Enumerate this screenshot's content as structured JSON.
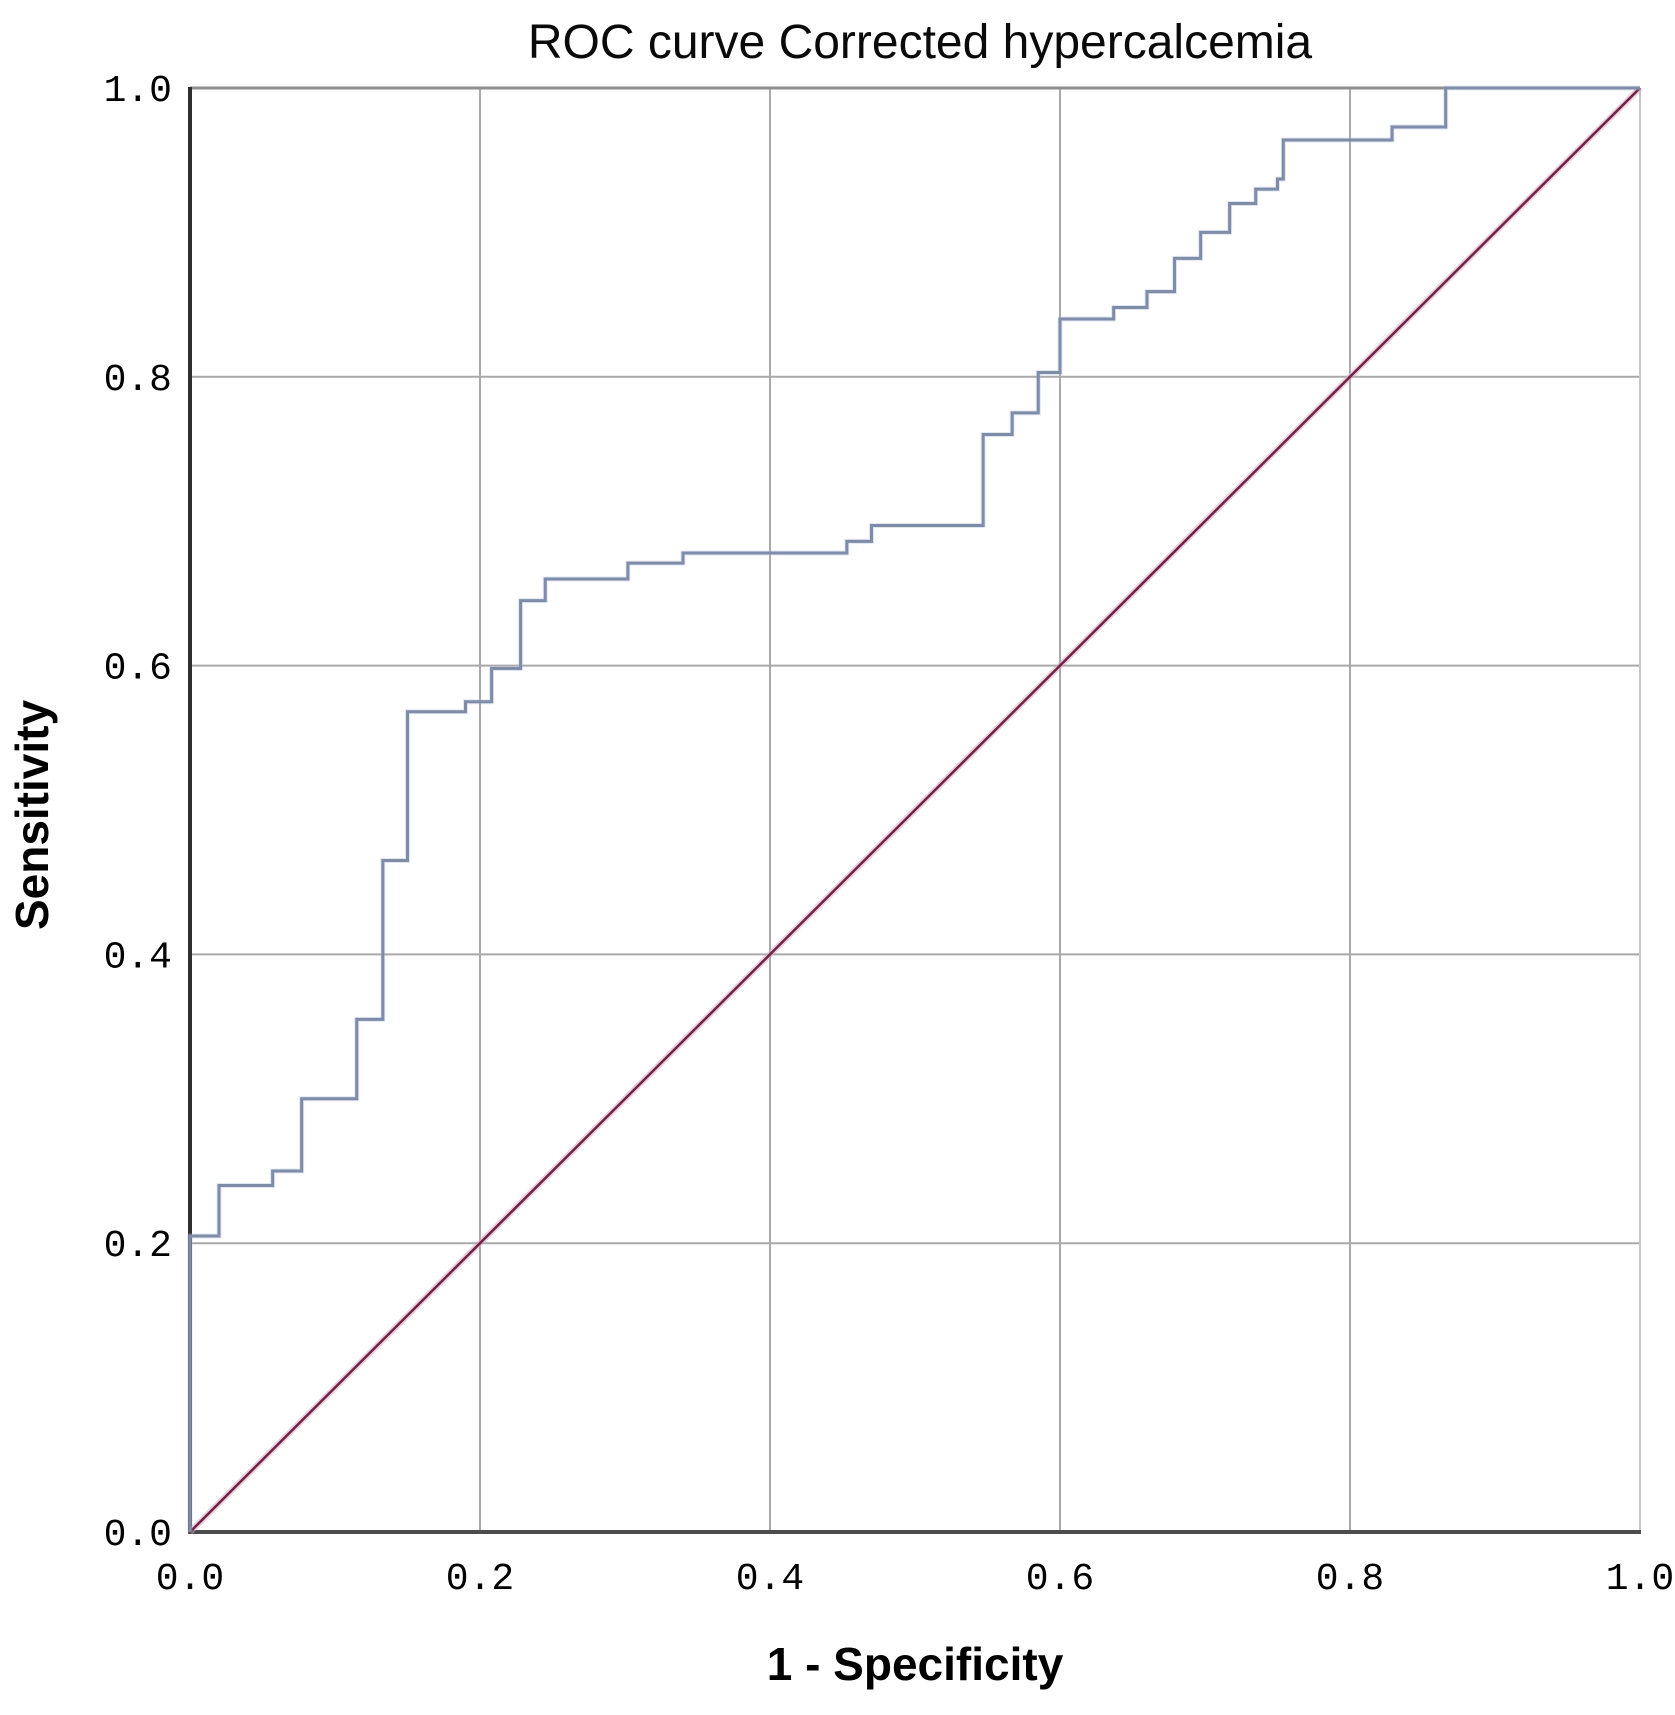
{
  "figure": {
    "title": "ROC curve Corrected hypercalcemia",
    "x_axis": {
      "label": "1 - Specificity",
      "ticks": [
        "0.0",
        "0.2",
        "0.4",
        "0.6",
        "0.8",
        "1.0"
      ]
    },
    "y_axis": {
      "label": "Sensitivity",
      "ticks": [
        "0.0",
        "0.2",
        "0.4",
        "0.6",
        "0.8",
        "1.0"
      ]
    }
  },
  "colors": {
    "background": "#ffffff",
    "gridline": "#a9a9a9",
    "axis_left": "#2f2f2f",
    "axis_bottom": "#4d4d4d",
    "border_top": "#8f8f8f",
    "border_right": "#c6c6c6",
    "curve": "#7e8ca8",
    "curve_highlight": "#a9b6dc",
    "diagonal": "#6f2345",
    "diagonal_halo": "#d9a8c0",
    "text": "#000000"
  },
  "chart_data": {
    "type": "line",
    "title": "ROC curve Corrected hypercalcemia",
    "xlabel": "1 - Specificity",
    "ylabel": "Sensitivity",
    "xlim": [
      0,
      1
    ],
    "ylim": [
      0,
      1
    ],
    "x_ticks": [
      0.0,
      0.2,
      0.4,
      0.6,
      0.8,
      1.0
    ],
    "y_ticks": [
      0.0,
      0.2,
      0.4,
      0.6,
      0.8,
      1.0
    ],
    "grid": true,
    "legend": "none",
    "series": [
      {
        "name": "ROC curve",
        "style": "step",
        "color": "#7e8ca8",
        "points": [
          [
            0.0,
            0.0
          ],
          [
            0.0,
            0.205
          ],
          [
            0.02,
            0.205
          ],
          [
            0.02,
            0.24
          ],
          [
            0.057,
            0.24
          ],
          [
            0.057,
            0.25
          ],
          [
            0.077,
            0.25
          ],
          [
            0.077,
            0.3
          ],
          [
            0.115,
            0.3
          ],
          [
            0.115,
            0.355
          ],
          [
            0.133,
            0.355
          ],
          [
            0.133,
            0.465
          ],
          [
            0.15,
            0.465
          ],
          [
            0.15,
            0.568
          ],
          [
            0.19,
            0.568
          ],
          [
            0.19,
            0.575
          ],
          [
            0.208,
            0.575
          ],
          [
            0.208,
            0.598
          ],
          [
            0.228,
            0.598
          ],
          [
            0.228,
            0.645
          ],
          [
            0.245,
            0.645
          ],
          [
            0.245,
            0.66
          ],
          [
            0.302,
            0.66
          ],
          [
            0.302,
            0.671
          ],
          [
            0.34,
            0.671
          ],
          [
            0.34,
            0.678
          ],
          [
            0.453,
            0.678
          ],
          [
            0.453,
            0.686
          ],
          [
            0.47,
            0.686
          ],
          [
            0.47,
            0.697
          ],
          [
            0.547,
            0.697
          ],
          [
            0.547,
            0.76
          ],
          [
            0.567,
            0.76
          ],
          [
            0.567,
            0.775
          ],
          [
            0.585,
            0.775
          ],
          [
            0.585,
            0.803
          ],
          [
            0.6,
            0.803
          ],
          [
            0.6,
            0.84
          ],
          [
            0.637,
            0.84
          ],
          [
            0.637,
            0.848
          ],
          [
            0.66,
            0.848
          ],
          [
            0.66,
            0.859
          ],
          [
            0.679,
            0.859
          ],
          [
            0.679,
            0.882
          ],
          [
            0.697,
            0.882
          ],
          [
            0.697,
            0.9
          ],
          [
            0.717,
            0.9
          ],
          [
            0.717,
            0.92
          ],
          [
            0.735,
            0.92
          ],
          [
            0.735,
            0.93
          ],
          [
            0.75,
            0.93
          ],
          [
            0.75,
            0.937
          ],
          [
            0.754,
            0.937
          ],
          [
            0.754,
            0.964
          ],
          [
            0.829,
            0.964
          ],
          [
            0.829,
            0.973
          ],
          [
            0.866,
            0.973
          ],
          [
            0.866,
            1.0
          ],
          [
            1.0,
            1.0
          ]
        ]
      },
      {
        "name": "Reference diagonal",
        "style": "line",
        "color": "#6f2345",
        "points": [
          [
            0.0,
            0.0
          ],
          [
            1.0,
            1.0
          ]
        ]
      }
    ]
  }
}
